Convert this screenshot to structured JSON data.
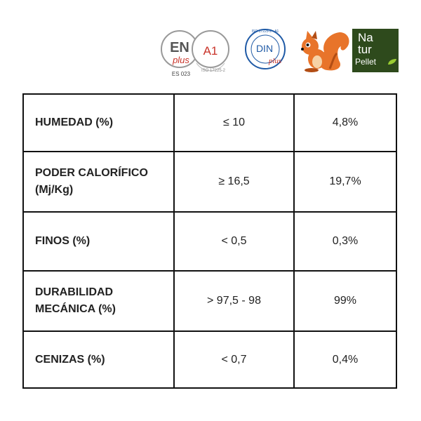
{
  "logos": {
    "enplus": {
      "en": "EN",
      "plus": "plus",
      "grade": "A1",
      "code": "ES 023",
      "ring_text": "ISO 17225-2"
    },
    "din": {
      "din": "DIN",
      "plus": "plus",
      "ring_text": "ISO 17225-2 - A1"
    },
    "naturpellet": {
      "line1": "Na",
      "line2": "tur",
      "line3": "Pellet"
    },
    "colors": {
      "accent_red": "#c9342a",
      "din_blue": "#1f5aa6",
      "natur_green": "#2e4a1c",
      "squirrel_orange": "#e8742a"
    }
  },
  "table": {
    "rows": [
      {
        "label_lines": [
          "HUMEDAD (%)"
        ],
        "limit": "≤ 10",
        "value": "4,8%"
      },
      {
        "label_lines": [
          "PODER CALORÍFICO",
          "(Mj/Kg)"
        ],
        "limit": "≥ 16,5",
        "value": "19,7%"
      },
      {
        "label_lines": [
          "FINOS (%)"
        ],
        "limit": "< 0,5",
        "value": "0,3%"
      },
      {
        "label_lines": [
          "DURABILIDAD",
          "MECÁNICA (%)"
        ],
        "limit": "> 97,5 - 98",
        "value": "99%"
      },
      {
        "label_lines": [
          "CENIZAS (%)"
        ],
        "limit": "< 0,7",
        "value": "0,4%"
      }
    ]
  }
}
